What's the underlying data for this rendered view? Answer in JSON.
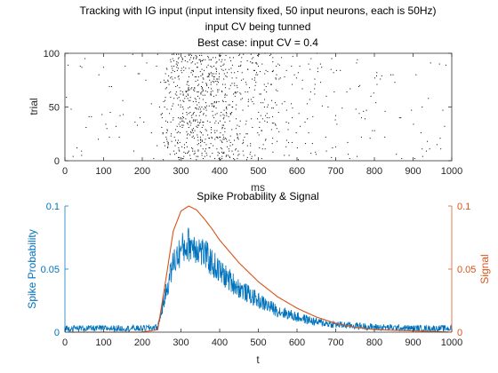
{
  "colors": {
    "axis": "#262626",
    "raster": "#000000",
    "probability": "#0072BD",
    "signal": "#D95319",
    "background": "#ffffff"
  },
  "chart_data": [
    {
      "type": "scatter",
      "subtype": "spike-raster",
      "title_lines": [
        "Tracking with IG input (input intensity fixed, 50 input neurons, each is 50Hz)",
        "input CV being tunned",
        "Best case: input CV = 0.4"
      ],
      "xlabel": "ms",
      "ylabel": "trial",
      "xlim": [
        0,
        1000
      ],
      "ylim": [
        0,
        100
      ],
      "xticks": [
        0,
        100,
        200,
        300,
        400,
        500,
        600,
        700,
        800,
        900,
        1000
      ],
      "yticks": [
        0,
        50,
        100
      ],
      "trials": 100,
      "spike_density_description": {
        "baseline_rate_per_trial": 0.05,
        "signal_peak_ms": 320,
        "signal_onset_ms": 240,
        "dense_region_ms": [
          260,
          480
        ]
      }
    },
    {
      "type": "line",
      "title": "Spike Probability & Signal",
      "xlabel": "t",
      "ylabel_left": "Spike Probability",
      "ylabel_right": "Signal",
      "xlim": [
        0,
        1000
      ],
      "ylim_left": [
        0,
        0.1
      ],
      "ylim_right": [
        0,
        0.1
      ],
      "xticks": [
        0,
        100,
        200,
        300,
        400,
        500,
        600,
        700,
        800,
        900,
        1000
      ],
      "yticks_left": [
        0,
        0.05,
        0.1
      ],
      "ytick_labels_left": [
        "0",
        "0.05",
        "0.1"
      ],
      "yticks_right": [
        0,
        0.05,
        0.1
      ],
      "ytick_labels_right": [
        "0",
        "0.05",
        "0.1"
      ],
      "series": [
        {
          "name": "Spike Probability",
          "axis": "left",
          "key_points": {
            "x": [
              0,
              100,
              200,
              240,
              260,
              280,
              300,
              320,
              340,
              360,
              380,
              400,
              450,
              500,
              550,
              600,
              650,
              700,
              800,
              900,
              1000
            ],
            "y": [
              0.003,
              0.003,
              0.003,
              0.004,
              0.03,
              0.055,
              0.065,
              0.07,
              0.068,
              0.062,
              0.055,
              0.048,
              0.035,
              0.025,
              0.017,
              0.012,
              0.008,
              0.006,
              0.004,
              0.003,
              0.003
            ]
          }
        },
        {
          "name": "Signal",
          "axis": "right",
          "key_points": {
            "x": [
              0,
              200,
              240,
              260,
              280,
              300,
              320,
              340,
              360,
              380,
              400,
              450,
              500,
              550,
              600,
              650,
              700,
              750,
              800,
              1000
            ],
            "y": [
              0,
              0,
              0.002,
              0.04,
              0.08,
              0.096,
              0.1,
              0.097,
              0.09,
              0.082,
              0.073,
              0.055,
              0.04,
              0.028,
              0.019,
              0.012,
              0.007,
              0.004,
              0.002,
              0
            ]
          }
        }
      ]
    }
  ]
}
